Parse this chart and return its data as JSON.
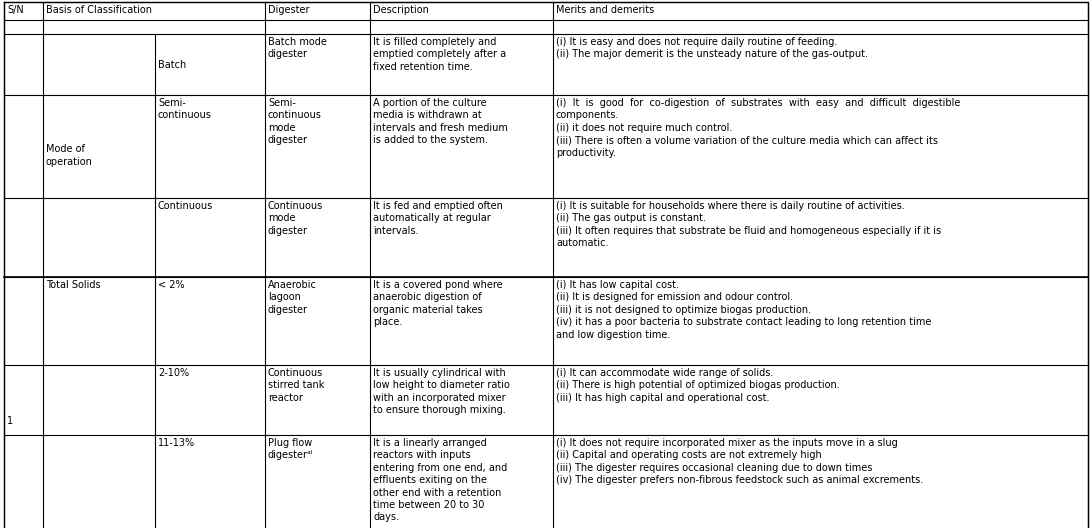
{
  "headers": [
    "S/N",
    "Basis of Classification",
    "Digester",
    "Description",
    "Merits and demerits"
  ],
  "font_size": 7.0,
  "bg_color": "#ffffff",
  "line_color": "#000000",
  "text_color": "#000000",
  "rows": [
    {
      "sn": "",
      "basis": "Mode of\noperation",
      "sub_basis": "Batch",
      "digester": "Batch mode\ndigester",
      "description": "It is filled completely and\nemptied completely after a\nfixed retention time.",
      "merits": "(i) It is easy and does not require daily routine of feeding.\n(ii) The major demerit is the unsteady nature of the gas-output."
    },
    {
      "sn": "",
      "basis": "",
      "sub_basis": "Semi-\ncontinuous",
      "digester": "Semi-\ncontinuous\nmode\ndigester",
      "description": "A portion of the culture\nmedia is withdrawn at\nintervals and fresh medium\nis added to the system.",
      "merits": "(i)  It  is  good  for  co-digestion  of  substrates  with  easy  and  difficult  digestible\ncomponents.\n(ii) it does not require much control.\n(iii) There is often a volume variation of the culture media which can affect its\nproductivity."
    },
    {
      "sn": "",
      "basis": "",
      "sub_basis": "Continuous",
      "digester": "Continuous\nmode\ndigester",
      "description": "It is fed and emptied often\nautomatically at regular\nintervals.",
      "merits": "(i) It is suitable for households where there is daily routine of activities.\n(ii) The gas output is constant.\n(iii) It often requires that substrate be fluid and homogeneous especially if it is\nautomatic."
    },
    {
      "sn": "1",
      "basis": "Total Solids",
      "sub_basis": "< 2%",
      "digester": "Anaerobic\nlagoon\ndigester",
      "description": "It is a covered pond where\nanaerobic digestion of\norganic material takes\nplace.",
      "merits": "(i) It has low capital cost.\n(ii) It is designed for emission and odour control.\n(iii) it is not designed to optimize biogas production.\n(iv) it has a poor bacteria to substrate contact leading to long retention time\nand low digestion time."
    },
    {
      "sn": "",
      "basis": "",
      "sub_basis": "2-10%",
      "digester": "Continuous\nstirred tank\nreactor",
      "description": "It is usually cylindrical with\nlow height to diameter ratio\nwith an incorporated mixer\nto ensure thorough mixing.",
      "merits": "(i) It can accommodate wide range of solids.\n(ii) There is high potential of optimized biogas production.\n(iii) It has high capital and operational cost."
    },
    {
      "sn": "",
      "basis": "",
      "sub_basis": "11-13%",
      "digester": "Plug flow\ndigesterᵃᴵ",
      "description": "It is a linearly arranged\nreactors with inputs\nentering from one end, and\neffluents exiting on the\nother end with a retention\ntime between 20 to 30\ndays.",
      "merits": "(i) It does not require incorporated mixer as the inputs move in a slug\n(ii) Capital and operating costs are not extremely high\n(iii) The digester requires occasional cleaning due to down times\n(iv) The digester prefers non-fibrous feedstock such as animal excrements."
    }
  ]
}
